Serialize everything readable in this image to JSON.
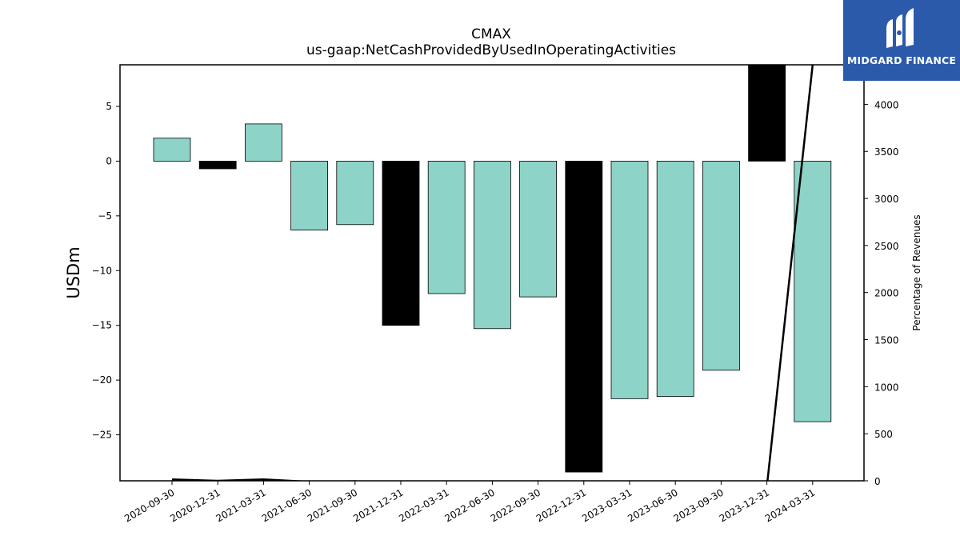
{
  "chart_data": {
    "type": "bar",
    "title": "CMAX",
    "subtitle": "us-gaap:NetCashProvidedByUsedInOperatingActivities",
    "ylabel": "USDm",
    "y2label": "Percentage of Revenues",
    "ylim": [
      -29.2,
      8.8
    ],
    "y2lim": [
      0,
      4420
    ],
    "yticks": [
      5,
      0,
      -5,
      -10,
      -15,
      -20,
      -25
    ],
    "y2ticks": [
      0,
      500,
      1000,
      1500,
      2000,
      2500,
      3000,
      3500,
      4000
    ],
    "categories": [
      "2020-09-30",
      "2020-12-31",
      "2021-03-31",
      "2021-06-30",
      "2021-09-30",
      "2021-12-31",
      "2022-03-31",
      "2022-06-30",
      "2022-09-30",
      "2022-12-31",
      "2023-03-31",
      "2023-06-30",
      "2023-09-30",
      "2023-12-31",
      "2024-03-31"
    ],
    "series": [
      {
        "values": [
          2.1,
          -0.7,
          3.4,
          -6.3,
          -5.8,
          -15.0,
          -12.1,
          -15.3,
          -12.4,
          -28.4,
          -21.7,
          -21.5,
          -19.1,
          8.8,
          -23.8
        ],
        "colors": [
          "#8dd3c7",
          "#000000",
          "#8dd3c7",
          "#8dd3c7",
          "#8dd3c7",
          "#000000",
          "#8dd3c7",
          "#8dd3c7",
          "#8dd3c7",
          "#000000",
          "#8dd3c7",
          "#8dd3c7",
          "#8dd3c7",
          "#000000",
          "#8dd3c7"
        ]
      },
      {
        "axis": "secondary",
        "type": "line",
        "color": "#000000",
        "values": [
          15,
          0,
          15,
          -10,
          -5,
          -20,
          -25,
          -30,
          -35,
          -40,
          -45,
          -50,
          -55,
          -60,
          4420
        ]
      }
    ],
    "grid": false
  },
  "logo": {
    "text": "MIDGARD FINANCE",
    "color": "#2b5aab"
  }
}
